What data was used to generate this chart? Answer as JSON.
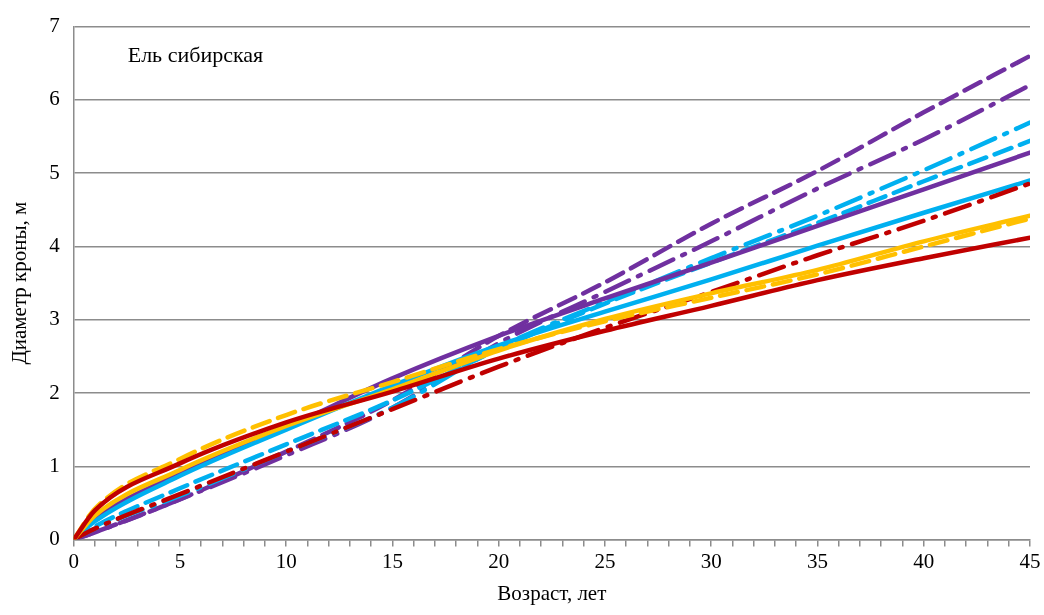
{
  "chart_data": {
    "type": "line",
    "xlabel": "Возраст, лет",
    "ylabel": "Диаметр кроны, м",
    "annotations": [
      "Ель сибирская"
    ],
    "x": [
      0,
      1,
      5,
      10,
      15,
      20,
      25,
      30,
      35,
      40,
      45
    ],
    "series": [
      {
        "color": "#7030a0",
        "line_style": "dashed",
        "values": [
          0,
          0.1,
          0.55,
          1.2,
          1.9,
          2.78,
          3.51,
          4.31,
          5.03,
          5.83,
          6.6
        ]
      },
      {
        "color": "#7030a0",
        "line_style": "dashdot",
        "values": [
          0,
          0.1,
          0.55,
          1.15,
          1.8,
          2.68,
          3.38,
          4.07,
          4.79,
          5.46,
          6.2
        ]
      },
      {
        "color": "#00b0f0",
        "line_style": "dashdot",
        "values": [
          0,
          0.15,
          0.6,
          1.2,
          1.8,
          2.62,
          3.24,
          3.84,
          4.42,
          5.04,
          5.69
        ]
      },
      {
        "color": "#00b0f0",
        "line_style": "dashed",
        "values": [
          0,
          0.18,
          0.7,
          1.3,
          1.9,
          2.6,
          3.22,
          3.78,
          4.32,
          4.89,
          5.44
        ]
      },
      {
        "color": "#7030a0",
        "line_style": "solid",
        "values": [
          0,
          0.28,
          0.9,
          1.53,
          2.2,
          2.78,
          3.29,
          3.78,
          4.28,
          4.78,
          5.28
        ]
      },
      {
        "color": "#00b0f0",
        "line_style": "solid",
        "values": [
          0,
          0.25,
          0.87,
          1.5,
          2.1,
          2.65,
          3.11,
          3.55,
          4.01,
          4.46,
          4.9
        ]
      },
      {
        "color": "#c00000",
        "line_style": "dashdot",
        "values": [
          0,
          0.15,
          0.62,
          1.2,
          1.78,
          2.36,
          2.89,
          3.38,
          3.88,
          4.35,
          4.86
        ]
      },
      {
        "color": "#ffc000",
        "line_style": "solid",
        "values": [
          0,
          0.33,
          0.95,
          1.55,
          2.05,
          2.58,
          3.01,
          3.36,
          3.68,
          4.07,
          4.42
        ]
      },
      {
        "color": "#ffc000",
        "line_style": "dashed",
        "values": [
          0,
          0.42,
          1.1,
          1.7,
          2.15,
          2.6,
          2.98,
          3.3,
          3.62,
          4.0,
          4.38
        ]
      },
      {
        "color": "#c00000",
        "line_style": "solid",
        "values": [
          0,
          0.4,
          1.04,
          1.6,
          2.02,
          2.47,
          2.85,
          3.19,
          3.54,
          3.84,
          4.12
        ]
      }
    ],
    "xlim": [
      0,
      45
    ],
    "xticks": [
      0,
      {
        "value": 1,
        "label": null
      },
      {
        "value": 2,
        "label": null
      },
      {
        "value": 3,
        "label": null
      },
      {
        "value": 4,
        "label": null
      },
      5,
      {
        "value": 6,
        "label": null
      },
      {
        "value": 7,
        "label": null
      },
      {
        "value": 8,
        "label": null
      },
      {
        "value": 9,
        "label": null
      },
      10,
      {
        "value": 11,
        "label": null
      },
      {
        "value": 12,
        "label": null
      },
      {
        "value": 13,
        "label": null
      },
      {
        "value": 14,
        "label": null
      },
      15,
      {
        "value": 16,
        "label": null
      },
      {
        "value": 17,
        "label": null
      },
      {
        "value": 18,
        "label": null
      },
      {
        "value": 19,
        "label": null
      },
      20,
      {
        "value": 21,
        "label": null
      },
      {
        "value": 22,
        "label": null
      },
      {
        "value": 23,
        "label": null
      },
      {
        "value": 24,
        "label": null
      },
      25,
      {
        "value": 26,
        "label": null
      },
      {
        "value": 27,
        "label": null
      },
      {
        "value": 28,
        "label": null
      },
      {
        "value": 29,
        "label": null
      },
      30,
      {
        "value": 31,
        "label": null
      },
      {
        "value": 32,
        "label": null
      },
      {
        "value": 33,
        "label": null
      },
      {
        "value": 34,
        "label": null
      },
      35,
      {
        "value": 36,
        "label": null
      },
      {
        "value": 37,
        "label": null
      },
      {
        "value": 38,
        "label": null
      },
      {
        "value": 39,
        "label": null
      },
      40,
      {
        "value": 41,
        "label": null
      },
      {
        "value": 42,
        "label": null
      },
      {
        "value": 43,
        "label": null
      },
      {
        "value": 44,
        "label": null
      },
      45
    ],
    "ylim": [
      0,
      7
    ],
    "yticks": [
      0,
      1,
      2,
      3,
      4,
      5,
      6,
      7
    ],
    "grid": "y",
    "legend": false,
    "marker": "none"
  }
}
